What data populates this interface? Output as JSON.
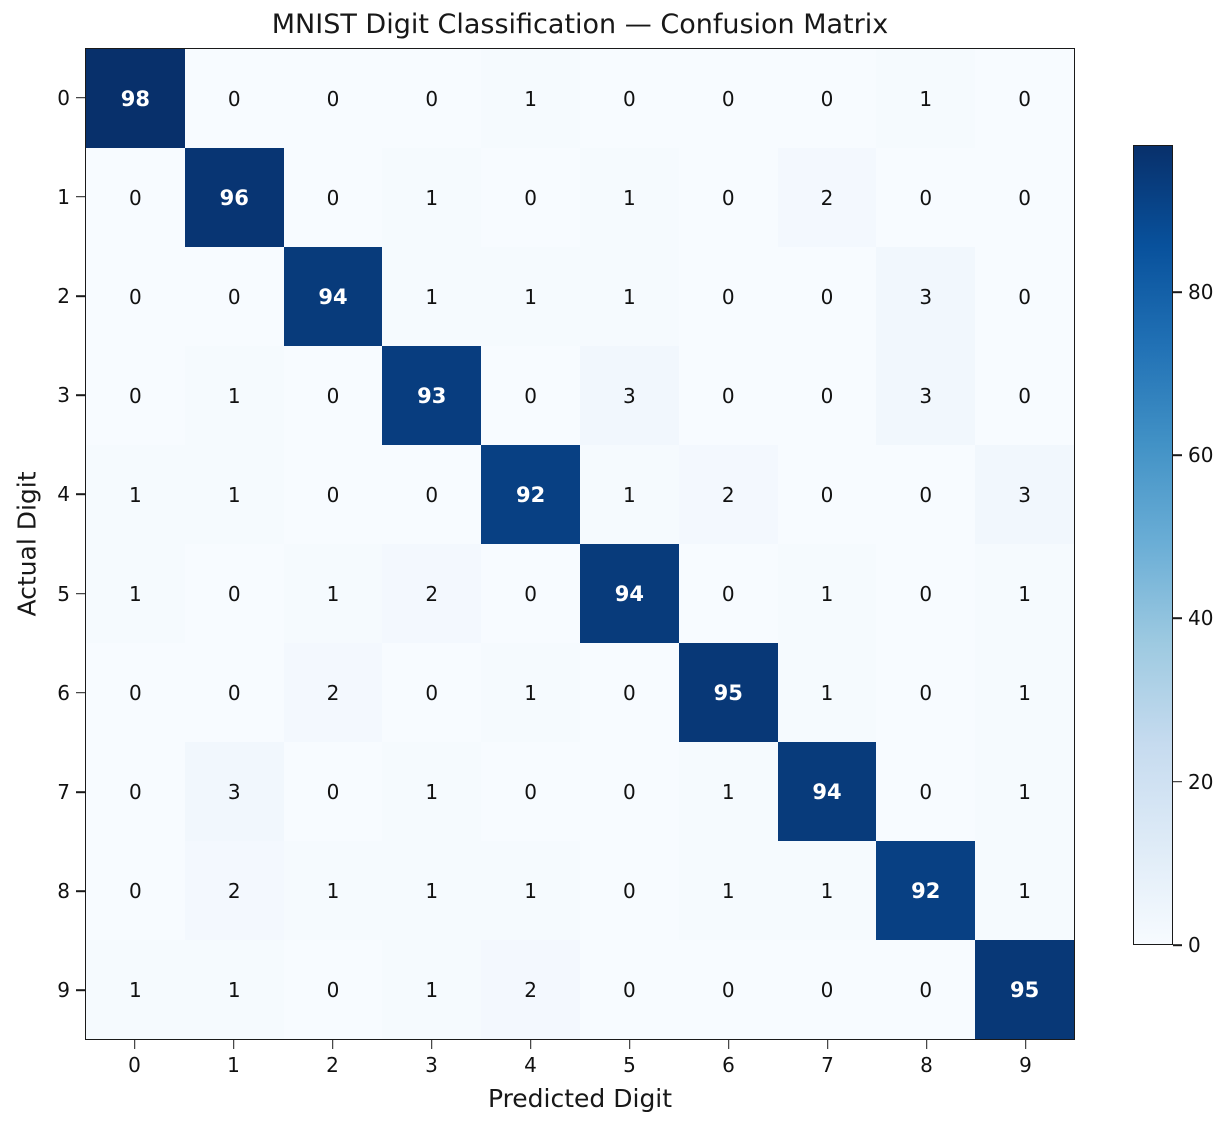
{
  "title": "MNIST Digit Classification — Confusion Matrix",
  "chart_data": {
    "type": "heatmap",
    "title": "MNIST Digit Classification — Confusion Matrix",
    "xlabel": "Predicted Digit",
    "ylabel": "Actual Digit",
    "x_tick_labels": [
      "0",
      "1",
      "2",
      "3",
      "4",
      "5",
      "6",
      "7",
      "8",
      "9"
    ],
    "y_tick_labels": [
      "0",
      "1",
      "2",
      "3",
      "4",
      "5",
      "6",
      "7",
      "8",
      "9"
    ],
    "matrix": [
      [
        98,
        0,
        0,
        0,
        1,
        0,
        0,
        0,
        1,
        0
      ],
      [
        0,
        96,
        0,
        1,
        0,
        1,
        0,
        2,
        0,
        0
      ],
      [
        0,
        0,
        94,
        1,
        1,
        1,
        0,
        0,
        3,
        0
      ],
      [
        0,
        1,
        0,
        93,
        0,
        3,
        0,
        0,
        3,
        0
      ],
      [
        1,
        1,
        0,
        0,
        92,
        1,
        2,
        0,
        0,
        3
      ],
      [
        1,
        0,
        1,
        2,
        0,
        94,
        0,
        1,
        0,
        1
      ],
      [
        0,
        0,
        2,
        0,
        1,
        0,
        95,
        1,
        0,
        1
      ],
      [
        0,
        3,
        0,
        1,
        0,
        0,
        1,
        94,
        0,
        1
      ],
      [
        0,
        2,
        1,
        1,
        1,
        0,
        1,
        1,
        92,
        1
      ],
      [
        1,
        1,
        0,
        1,
        2,
        0,
        0,
        0,
        0,
        95
      ]
    ],
    "vmin": 0,
    "vmax": 98,
    "colormap": "Blues",
    "colorbar_ticks": [
      0,
      20,
      40,
      60,
      80
    ],
    "colorbar_position": "right",
    "grid": false
  },
  "colors": {
    "cmap_anchors": [
      "#f7fbff",
      "#deebf7",
      "#c6dbef",
      "#9ecae1",
      "#6baed6",
      "#4292c6",
      "#2171b5",
      "#08519c",
      "#08306b"
    ],
    "cell_text_dark": "#111111",
    "cell_text_light": "#ffffff",
    "spine": "#1a1a1a"
  }
}
